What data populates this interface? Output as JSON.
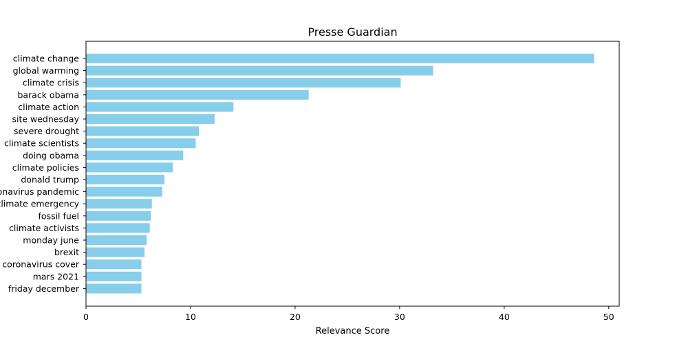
{
  "chart_data": {
    "type": "bar",
    "orientation": "horizontal",
    "title": "Presse Guardian",
    "xlabel": "Relevance Score",
    "ylabel": "",
    "xlim": [
      0,
      51
    ],
    "xticks": [
      "0",
      "10",
      "20",
      "30",
      "40",
      "50"
    ],
    "grid": false,
    "bar_color": "#87ceeb",
    "categories": [
      "climate change",
      "global warming",
      "climate crisis",
      "barack obama",
      "climate action",
      "site wednesday",
      "severe drought",
      "climate scientists",
      "doing obama",
      "climate policies",
      "donald trump",
      "coronavirus pandemic",
      "climate emergency",
      "fossil fuel",
      "climate activists",
      "monday june",
      "brexit",
      "coronavirus cover",
      "mars 2021",
      "friday december"
    ],
    "values": [
      48.6,
      33.2,
      30.1,
      21.3,
      14.1,
      12.3,
      10.8,
      10.5,
      9.3,
      8.3,
      7.5,
      7.3,
      6.3,
      6.2,
      6.1,
      5.8,
      5.6,
      5.3,
      5.3,
      5.3
    ]
  }
}
